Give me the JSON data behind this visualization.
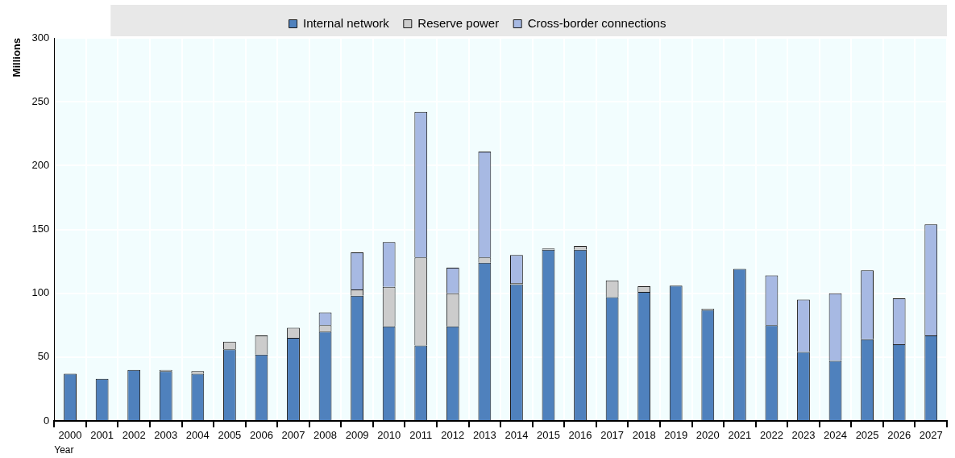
{
  "chart_data": {
    "type": "bar",
    "stacked": true,
    "xlabel": "Year",
    "ylabel": "Millions",
    "categories": [
      "2000",
      "2001",
      "2002",
      "2003",
      "2004",
      "2005",
      "2006",
      "2007",
      "2008",
      "2009",
      "2010",
      "2011",
      "2012",
      "2013",
      "2014",
      "2015",
      "2016",
      "2017",
      "2018",
      "2019",
      "2020",
      "2021",
      "2022",
      "2023",
      "2024",
      "2025",
      "2026",
      "2027"
    ],
    "series": [
      {
        "name": "Internal network",
        "color": "#4f81bd",
        "values": [
          37,
          33,
          40,
          39,
          37,
          56,
          52,
          65,
          70,
          98,
          74,
          59,
          74,
          124,
          107,
          134,
          134,
          97,
          101,
          106,
          87,
          119,
          75,
          54,
          47,
          64,
          60,
          67
        ]
      },
      {
        "name": "Reserve power",
        "color": "#cccccc",
        "values": [
          null,
          null,
          null,
          1,
          2,
          6,
          15,
          8,
          5,
          5,
          31,
          69,
          26,
          4,
          1,
          1,
          3,
          13,
          4.5,
          null,
          1,
          null,
          null,
          null,
          null,
          null,
          null,
          null
        ]
      },
      {
        "name": "Cross-border connections",
        "color": "#a7b9e3",
        "values": [
          null,
          null,
          null,
          null,
          null,
          null,
          null,
          null,
          10,
          29,
          35,
          114,
          20,
          83,
          22,
          null,
          null,
          null,
          null,
          null,
          null,
          null,
          39,
          41,
          53,
          54,
          36,
          87
        ]
      }
    ],
    "ylim": [
      0,
      300
    ],
    "yticks": [
      0,
      50,
      100,
      150,
      200,
      250,
      300
    ],
    "grid": true,
    "legend": "top"
  }
}
